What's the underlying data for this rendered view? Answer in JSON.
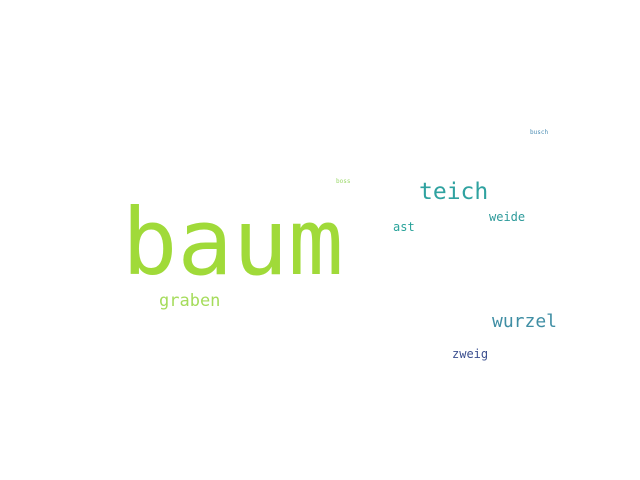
{
  "words": {
    "baum": {
      "text": "baum",
      "color": "#a0da39"
    },
    "teich": {
      "text": "teich",
      "color": "#2fa2a0"
    },
    "graben": {
      "text": "graben",
      "color": "#a5dc5b"
    },
    "wurzel": {
      "text": "wurzel",
      "color": "#3f8ea4"
    },
    "weide": {
      "text": "weide",
      "color": "#2d9a9a"
    },
    "ast": {
      "text": "ast",
      "color": "#2aa39a"
    },
    "zweig": {
      "text": "zweig",
      "color": "#3b4f8f"
    },
    "busch": {
      "text": "busch",
      "color": "#4f8fb5"
    },
    "boss": {
      "text": "boss",
      "color": "#9bd869"
    }
  }
}
